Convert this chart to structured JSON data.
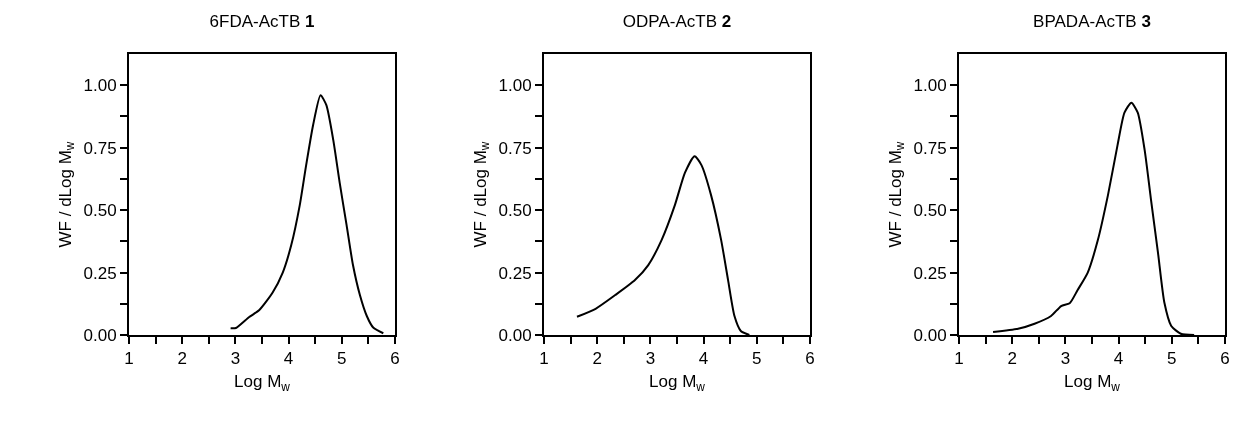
{
  "chart_data": [
    {
      "type": "line",
      "title": "6FDA-AcTB 1",
      "xlabel": "Log M$_{w}$",
      "ylabel": "WF / dLog M$_{w}$",
      "xlim": [
        1,
        6
      ],
      "ylim": [
        0,
        1.125
      ],
      "xticks": [
        1,
        {
          "value": 1.5,
          "label": null
        },
        2,
        {
          "value": 2.5,
          "label": null
        },
        3,
        {
          "value": 3.5,
          "label": null
        },
        4,
        {
          "value": 4.5,
          "label": null
        },
        5,
        {
          "value": 5.5,
          "label": null
        },
        6
      ],
      "yticks": [
        {
          "value": 0,
          "label": "0.00"
        },
        {
          "value": 0.125,
          "label": null
        },
        {
          "value": 0.25,
          "label": "0.25"
        },
        {
          "value": 0.375,
          "label": null
        },
        {
          "value": 0.5,
          "label": "0.50"
        },
        {
          "value": 0.625,
          "label": null
        },
        {
          "value": 0.75,
          "label": "0.75"
        },
        {
          "value": 0.875,
          "label": null
        },
        {
          "value": 1,
          "label": "1.00"
        }
      ],
      "series": [
        {
          "color": "#000000",
          "x": [
            2.91,
            3.01,
            3.26,
            3.45,
            3.7,
            3.89,
            4.05,
            4.21,
            4.33,
            4.46,
            4.6,
            4.71,
            4.84,
            4.96,
            5.09,
            5.21,
            5.34,
            5.47,
            5.59,
            5.78
          ],
          "values": [
            0.027,
            0.028,
            0.072,
            0.1,
            0.17,
            0.25,
            0.36,
            0.52,
            0.68,
            0.84,
            0.96,
            0.92,
            0.78,
            0.61,
            0.44,
            0.28,
            0.16,
            0.076,
            0.03,
            0.007
          ]
        }
      ]
    },
    {
      "type": "line",
      "title": "ODPA-AcTB 2",
      "xlabel": "Log M$_{w}$",
      "ylabel": "WF / dLog M$_{w}$",
      "xlim": [
        1,
        6
      ],
      "ylim": [
        0,
        1.125
      ],
      "xticks": [
        1,
        {
          "value": 1.5,
          "label": null
        },
        2,
        {
          "value": 2.5,
          "label": null
        },
        3,
        {
          "value": 3.5,
          "label": null
        },
        4,
        {
          "value": 4.5,
          "label": null
        },
        5,
        {
          "value": 5.5,
          "label": null
        },
        6
      ],
      "yticks": [
        {
          "value": 0,
          "label": "0.00"
        },
        {
          "value": 0.125,
          "label": null
        },
        {
          "value": 0.25,
          "label": "0.25"
        },
        {
          "value": 0.375,
          "label": null
        },
        {
          "value": 0.5,
          "label": "0.50"
        },
        {
          "value": 0.625,
          "label": null
        },
        {
          "value": 0.75,
          "label": "0.75"
        },
        {
          "value": 0.875,
          "label": null
        },
        {
          "value": 1,
          "label": "1.00"
        }
      ],
      "series": [
        {
          "color": "#000000",
          "x": [
            1.62,
            1.97,
            2.34,
            2.71,
            2.96,
            3.21,
            3.46,
            3.65,
            3.83,
            3.96,
            4.14,
            4.33,
            4.46,
            4.58,
            4.7,
            4.86
          ],
          "values": [
            0.073,
            0.105,
            0.16,
            0.22,
            0.28,
            0.38,
            0.52,
            0.65,
            0.716,
            0.68,
            0.56,
            0.38,
            0.22,
            0.076,
            0.016,
            0.0
          ]
        }
      ]
    },
    {
      "type": "line",
      "title": "BPADA-AcTB 3",
      "xlabel": "Log M$_{w}$",
      "ylabel": "WF / dLog M$_{w}$",
      "xlim": [
        1,
        6
      ],
      "ylim": [
        0,
        1.125
      ],
      "xticks": [
        1,
        {
          "value": 1.5,
          "label": null
        },
        2,
        {
          "value": 2.5,
          "label": null
        },
        3,
        {
          "value": 3.5,
          "label": null
        },
        4,
        {
          "value": 4.5,
          "label": null
        },
        5,
        {
          "value": 5.5,
          "label": null
        },
        6
      ],
      "yticks": [
        {
          "value": 0,
          "label": "0.00"
        },
        {
          "value": 0.125,
          "label": null
        },
        {
          "value": 0.25,
          "label": "0.25"
        },
        {
          "value": 0.375,
          "label": null
        },
        {
          "value": 0.5,
          "label": "0.50"
        },
        {
          "value": 0.625,
          "label": null
        },
        {
          "value": 0.75,
          "label": "0.75"
        },
        {
          "value": 0.875,
          "label": null
        },
        {
          "value": 1,
          "label": "1.00"
        }
      ],
      "series": [
        {
          "color": "#000000",
          "x": [
            1.64,
            2.11,
            2.42,
            2.73,
            2.92,
            3.08,
            3.23,
            3.42,
            3.61,
            3.8,
            3.98,
            4.11,
            4.24,
            4.36,
            4.49,
            4.61,
            4.74,
            4.86,
            4.99,
            5.17,
            5.42
          ],
          "values": [
            0.012,
            0.025,
            0.045,
            0.076,
            0.116,
            0.127,
            0.18,
            0.25,
            0.38,
            0.56,
            0.76,
            0.89,
            0.93,
            0.89,
            0.74,
            0.54,
            0.33,
            0.13,
            0.036,
            0.005,
            0.0
          ]
        }
      ]
    }
  ]
}
